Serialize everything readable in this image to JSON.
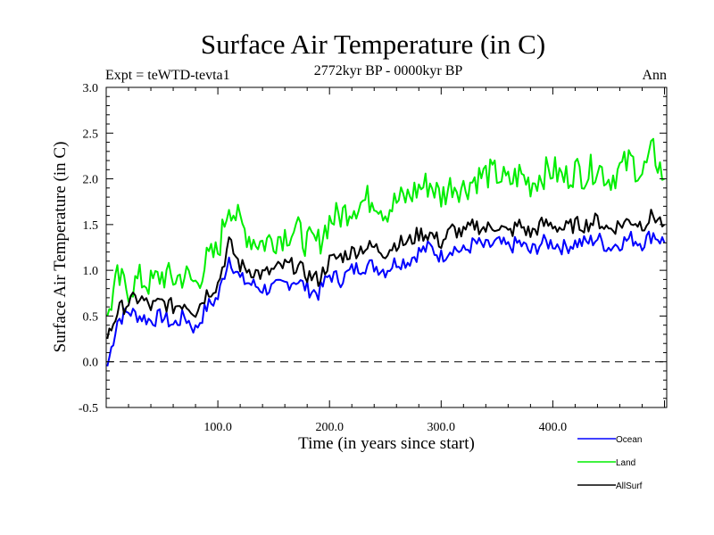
{
  "chart_data": {
    "type": "line",
    "title": "Surface Air Temperature (in C)",
    "subtitle": "2772kyr BP - 0000kyr BP",
    "left_label": "Expt = teWTD-tevta1",
    "right_label": "Ann",
    "xlabel": "Time (in years since start)",
    "ylabel": "Surface Air Temperature (in C)",
    "xlim": [
      0,
      502
    ],
    "ylim": [
      -0.5,
      3.0
    ],
    "xticks": [
      100,
      200,
      300,
      400
    ],
    "xtick_labels": [
      "100.0",
      "200.0",
      "300.0",
      "400.0"
    ],
    "yticks": [
      -0.5,
      0.0,
      0.5,
      1.0,
      1.5,
      2.0,
      2.5,
      3.0
    ],
    "ytick_labels": [
      "-0.5",
      "0.0",
      "0.5",
      "1.0",
      "1.5",
      "2.0",
      "2.5",
      "3.0"
    ],
    "reference_line": {
      "y": 0.0,
      "style": "dashed"
    },
    "legend_position": "bottom-right",
    "x": [
      1,
      10,
      20,
      30,
      40,
      50,
      60,
      70,
      80,
      90,
      100,
      110,
      120,
      130,
      140,
      150,
      160,
      170,
      180,
      190,
      200,
      210,
      220,
      230,
      240,
      250,
      260,
      270,
      280,
      290,
      300,
      310,
      320,
      330,
      340,
      350,
      360,
      370,
      380,
      390,
      400,
      410,
      420,
      430,
      440,
      450,
      460,
      470,
      480,
      490,
      500
    ],
    "series": [
      {
        "name": "Ocean",
        "color": "#0000ff",
        "values": [
          -0.05,
          0.45,
          0.55,
          0.5,
          0.45,
          0.5,
          0.4,
          0.5,
          0.35,
          0.6,
          0.7,
          1.15,
          0.9,
          0.85,
          0.8,
          0.8,
          0.85,
          0.9,
          0.8,
          0.75,
          0.95,
          0.9,
          1.0,
          1.05,
          1.05,
          1.0,
          1.1,
          1.1,
          1.2,
          1.25,
          1.15,
          1.25,
          1.2,
          1.3,
          1.25,
          1.3,
          1.25,
          1.3,
          1.2,
          1.3,
          1.3,
          1.25,
          1.3,
          1.3,
          1.35,
          1.25,
          1.3,
          1.35,
          1.3,
          1.4,
          1.3
        ]
      },
      {
        "name": "Land",
        "color": "#00ee00",
        "values": [
          0.5,
          0.9,
          0.8,
          0.9,
          0.85,
          0.95,
          0.9,
          0.95,
          0.85,
          1.1,
          1.2,
          1.75,
          1.5,
          1.35,
          1.3,
          1.35,
          1.4,
          1.45,
          1.3,
          1.3,
          1.55,
          1.6,
          1.7,
          1.75,
          1.8,
          1.65,
          1.75,
          1.8,
          1.9,
          1.95,
          1.8,
          1.95,
          1.9,
          2.0,
          2.05,
          2.05,
          1.95,
          2.05,
          1.95,
          2.05,
          2.1,
          2.0,
          2.1,
          2.05,
          2.15,
          2.0,
          2.1,
          2.2,
          2.05,
          2.3,
          2.0
        ]
      },
      {
        "name": "AllSurf",
        "color": "#000000",
        "values": [
          0.25,
          0.55,
          0.65,
          0.7,
          0.6,
          0.65,
          0.6,
          0.65,
          0.55,
          0.75,
          0.85,
          1.3,
          1.05,
          1.0,
          0.95,
          1.0,
          1.05,
          1.05,
          0.95,
          0.9,
          1.1,
          1.15,
          1.2,
          1.25,
          1.25,
          1.2,
          1.3,
          1.3,
          1.4,
          1.4,
          1.3,
          1.45,
          1.4,
          1.5,
          1.45,
          1.5,
          1.4,
          1.5,
          1.4,
          1.5,
          1.5,
          1.45,
          1.5,
          1.5,
          1.55,
          1.45,
          1.5,
          1.55,
          1.5,
          1.6,
          1.5
        ]
      }
    ]
  }
}
